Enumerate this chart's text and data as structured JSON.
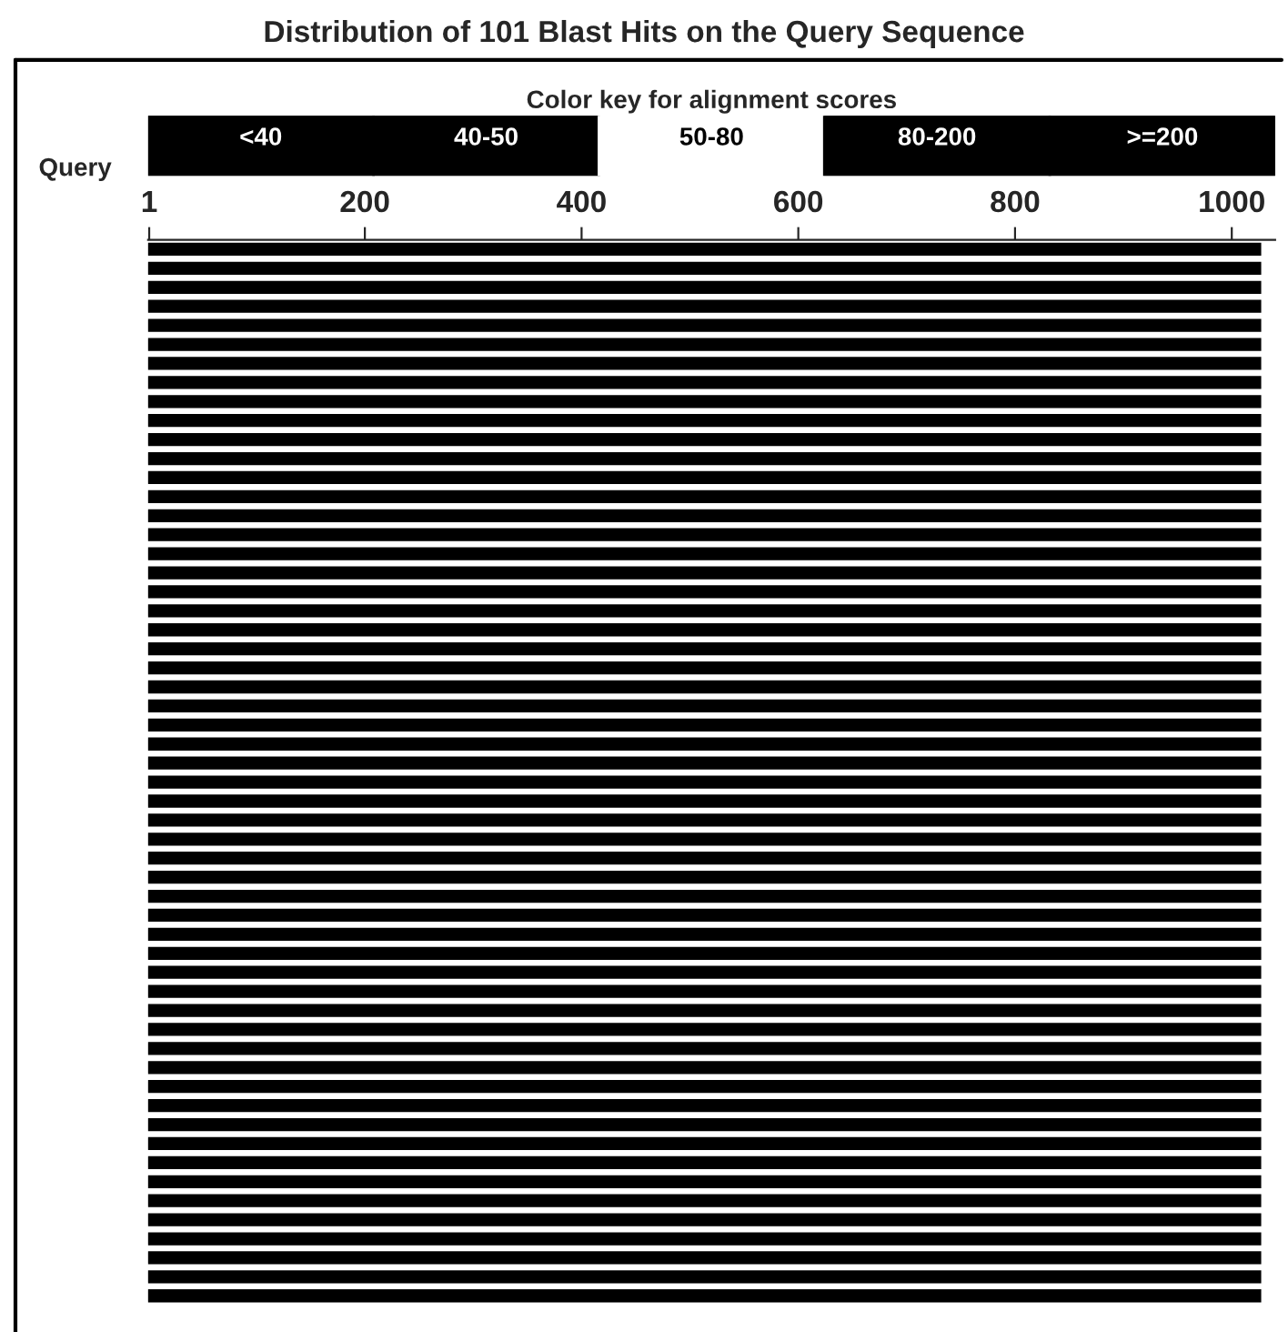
{
  "chart_data": [
    {
      "type": "other",
      "title": "Color key for alignment scores",
      "categories": [
        "<40",
        "40-50",
        "50-80",
        "80-200",
        ">=200"
      ],
      "colors": [
        "#000000",
        "#000000",
        "#ffffff",
        "#000000",
        "#000000"
      ]
    },
    {
      "type": "bar",
      "orientation": "horizontal",
      "title": "Distribution of 101 Blast Hits on the Query Sequence",
      "annotations": [
        "Query"
      ],
      "categories": [
        null,
        null,
        null,
        null,
        null,
        null,
        null,
        null,
        null,
        null,
        null,
        null,
        null,
        null,
        null,
        null,
        null,
        null,
        null,
        null,
        null,
        null,
        null,
        null,
        null,
        null,
        null,
        null,
        null,
        null,
        null,
        null,
        null,
        null,
        null,
        null,
        null,
        null,
        null,
        null,
        null,
        null,
        null,
        null,
        null,
        null,
        null,
        null,
        null,
        null,
        null,
        null,
        null,
        null,
        null,
        null
      ],
      "series": [
        {
          "color": "#000000",
          "values": [
            1026,
            1026,
            1026,
            1026,
            1026,
            1026,
            1026,
            1026,
            1026,
            1026,
            1026,
            1026,
            1026,
            1026,
            1026,
            1026,
            1026,
            1026,
            1026,
            1026,
            1026,
            1026,
            1026,
            1026,
            1026,
            1026,
            1026,
            1026,
            1026,
            1026,
            1026,
            1026,
            1026,
            1026,
            1026,
            1026,
            1026,
            1026,
            1026,
            1026,
            1026,
            1026,
            1026,
            1026,
            1026,
            1026,
            1026,
            1026,
            1026,
            1026,
            1026,
            1026,
            1026,
            1026,
            1026,
            1026
          ]
        }
      ],
      "xlim": [
        0,
        1040
      ],
      "xticks": [
        1,
        200,
        400,
        600,
        800,
        1000
      ],
      "tick_labels": "x"
    }
  ]
}
